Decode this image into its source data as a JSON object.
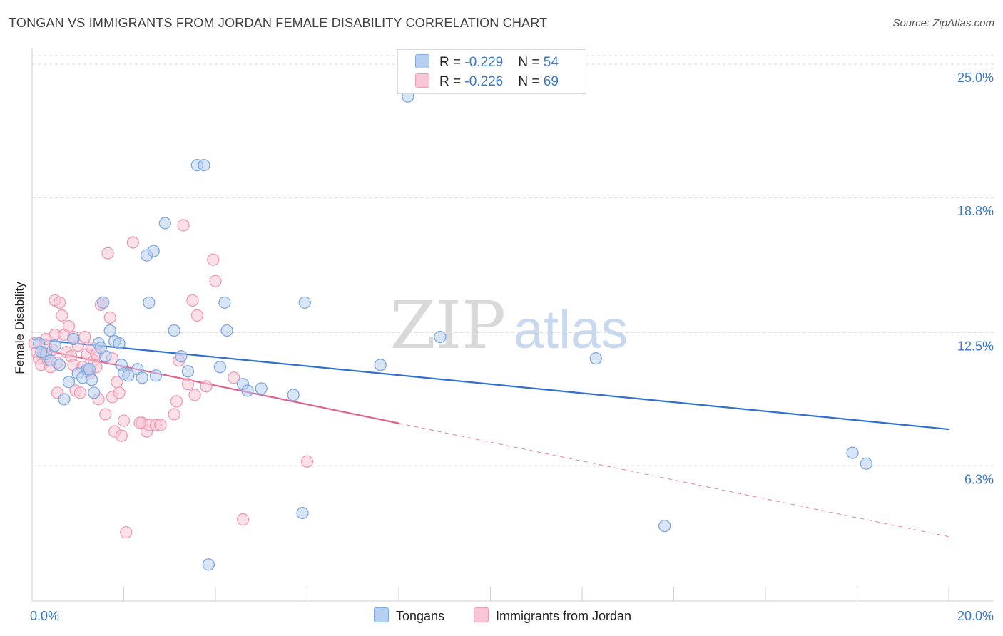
{
  "title": "TONGAN VS IMMIGRANTS FROM JORDAN FEMALE DISABILITY CORRELATION CHART",
  "source": "Source: ZipAtlas.com",
  "watermark": {
    "zip": "ZIP",
    "atlas": "atlas"
  },
  "legend": [
    {
      "r_label": "R = ",
      "r_value": "-0.229",
      "n_label": "N = ",
      "n_value": "54"
    },
    {
      "r_label": "R = ",
      "r_value": "-0.226",
      "n_label": "N = ",
      "n_value": "69"
    }
  ],
  "chart_data": {
    "type": "scatter",
    "title": "TONGAN VS IMMIGRANTS FROM JORDAN FEMALE DISABILITY CORRELATION CHART",
    "xlabel": "",
    "ylabel": "Female Disability",
    "xlim": [
      0,
      20
    ],
    "ylim": [
      0,
      25.6
    ],
    "x_ticks": [
      {
        "value": 0,
        "label": "0.0%"
      },
      {
        "value": 20,
        "label": "20.0%"
      }
    ],
    "y_ticks": [
      {
        "value": 6.3,
        "label": "6.3%"
      },
      {
        "value": 12.5,
        "label": "12.5%"
      },
      {
        "value": 18.8,
        "label": "18.8%"
      },
      {
        "value": 25.0,
        "label": "25.0%"
      }
    ],
    "grid": true,
    "legend_position": "bottom-center",
    "series": [
      {
        "name": "Tongans",
        "color": "#7fa8e0",
        "fill": "#b8d0f0",
        "trend_color": "#2e6fd0",
        "trend": {
          "x0": 0,
          "y0": 12.2,
          "x1": 20,
          "y1": 8.0,
          "dash_from": null
        },
        "points": [
          [
            0.3,
            11.5
          ],
          [
            0.5,
            11.9
          ],
          [
            0.6,
            11.0
          ],
          [
            0.7,
            9.4
          ],
          [
            0.8,
            10.2
          ],
          [
            0.9,
            12.2
          ],
          [
            1.0,
            10.6
          ],
          [
            1.1,
            10.4
          ],
          [
            1.2,
            10.8
          ],
          [
            1.25,
            10.8
          ],
          [
            1.3,
            10.3
          ],
          [
            1.35,
            9.7
          ],
          [
            1.45,
            12.0
          ],
          [
            1.55,
            13.9
          ],
          [
            1.6,
            11.4
          ],
          [
            1.7,
            12.6
          ],
          [
            1.8,
            12.1
          ],
          [
            1.9,
            12.0
          ],
          [
            1.95,
            11.0
          ],
          [
            2.0,
            10.6
          ],
          [
            2.1,
            10.5
          ],
          [
            2.3,
            10.8
          ],
          [
            2.4,
            10.4
          ],
          [
            2.5,
            16.1
          ],
          [
            2.55,
            13.9
          ],
          [
            2.65,
            16.3
          ],
          [
            2.7,
            10.5
          ],
          [
            2.9,
            17.6
          ],
          [
            3.1,
            12.6
          ],
          [
            3.25,
            11.4
          ],
          [
            3.4,
            10.7
          ],
          [
            3.6,
            20.3
          ],
          [
            3.75,
            20.3
          ],
          [
            3.85,
            1.7
          ],
          [
            4.1,
            10.9
          ],
          [
            4.2,
            13.9
          ],
          [
            4.25,
            12.6
          ],
          [
            4.6,
            10.1
          ],
          [
            4.7,
            9.8
          ],
          [
            5.0,
            9.9
          ],
          [
            5.7,
            9.6
          ],
          [
            5.9,
            4.1
          ],
          [
            5.95,
            13.9
          ],
          [
            7.6,
            11.0
          ],
          [
            8.2,
            23.5
          ],
          [
            8.9,
            12.3
          ],
          [
            12.3,
            11.3
          ],
          [
            13.8,
            3.5
          ],
          [
            17.9,
            6.9
          ],
          [
            18.2,
            6.4
          ],
          [
            0.15,
            12.0
          ],
          [
            0.2,
            11.6
          ],
          [
            0.4,
            11.2
          ],
          [
            1.5,
            11.8
          ]
        ]
      },
      {
        "name": "Immigrants from Jordan",
        "color": "#ee9bb6",
        "fill": "#f8c6d6",
        "trend_color": "#e0628e",
        "trend": {
          "x0": 0,
          "y0": 11.8,
          "x1": 20,
          "y1": 3.0,
          "dash_from": 8.0
        },
        "points": [
          [
            0.05,
            12.0
          ],
          [
            0.1,
            11.6
          ],
          [
            0.15,
            11.3
          ],
          [
            0.2,
            11.0
          ],
          [
            0.25,
            11.5
          ],
          [
            0.3,
            11.9
          ],
          [
            0.35,
            11.2
          ],
          [
            0.4,
            10.9
          ],
          [
            0.45,
            11.7
          ],
          [
            0.5,
            12.4
          ],
          [
            0.5,
            14.0
          ],
          [
            0.55,
            9.7
          ],
          [
            0.6,
            13.9
          ],
          [
            0.65,
            13.3
          ],
          [
            0.7,
            12.4
          ],
          [
            0.75,
            11.6
          ],
          [
            0.8,
            12.8
          ],
          [
            0.85,
            11.4
          ],
          [
            0.9,
            11.0
          ],
          [
            0.95,
            9.8
          ],
          [
            1.0,
            11.9
          ],
          [
            1.05,
            9.7
          ],
          [
            1.1,
            10.9
          ],
          [
            1.15,
            12.3
          ],
          [
            1.2,
            11.5
          ],
          [
            1.25,
            10.6
          ],
          [
            1.3,
            11.8
          ],
          [
            1.35,
            11.2
          ],
          [
            1.4,
            10.9
          ],
          [
            1.45,
            9.4
          ],
          [
            1.5,
            13.8
          ],
          [
            1.55,
            13.9
          ],
          [
            1.6,
            8.7
          ],
          [
            1.65,
            16.2
          ],
          [
            1.7,
            13.2
          ],
          [
            1.75,
            9.5
          ],
          [
            1.8,
            7.9
          ],
          [
            1.85,
            10.2
          ],
          [
            1.9,
            9.7
          ],
          [
            1.95,
            7.7
          ],
          [
            2.0,
            8.4
          ],
          [
            2.05,
            3.2
          ],
          [
            2.2,
            16.7
          ],
          [
            2.4,
            8.3
          ],
          [
            2.5,
            7.9
          ],
          [
            2.55,
            8.2
          ],
          [
            2.7,
            8.2
          ],
          [
            2.8,
            8.2
          ],
          [
            3.1,
            8.7
          ],
          [
            3.15,
            9.3
          ],
          [
            3.2,
            11.2
          ],
          [
            3.3,
            17.5
          ],
          [
            3.5,
            14.0
          ],
          [
            3.55,
            9.6
          ],
          [
            3.6,
            13.3
          ],
          [
            3.8,
            10.0
          ],
          [
            3.95,
            15.9
          ],
          [
            4.0,
            14.9
          ],
          [
            4.4,
            10.4
          ],
          [
            4.6,
            3.8
          ],
          [
            6.0,
            6.5
          ],
          [
            0.3,
            12.2
          ],
          [
            0.55,
            11.1
          ],
          [
            0.9,
            12.3
          ],
          [
            1.2,
            10.7
          ],
          [
            1.4,
            11.5
          ],
          [
            2.35,
            8.3
          ],
          [
            3.4,
            10.1
          ],
          [
            1.75,
            11.3
          ]
        ]
      }
    ]
  }
}
